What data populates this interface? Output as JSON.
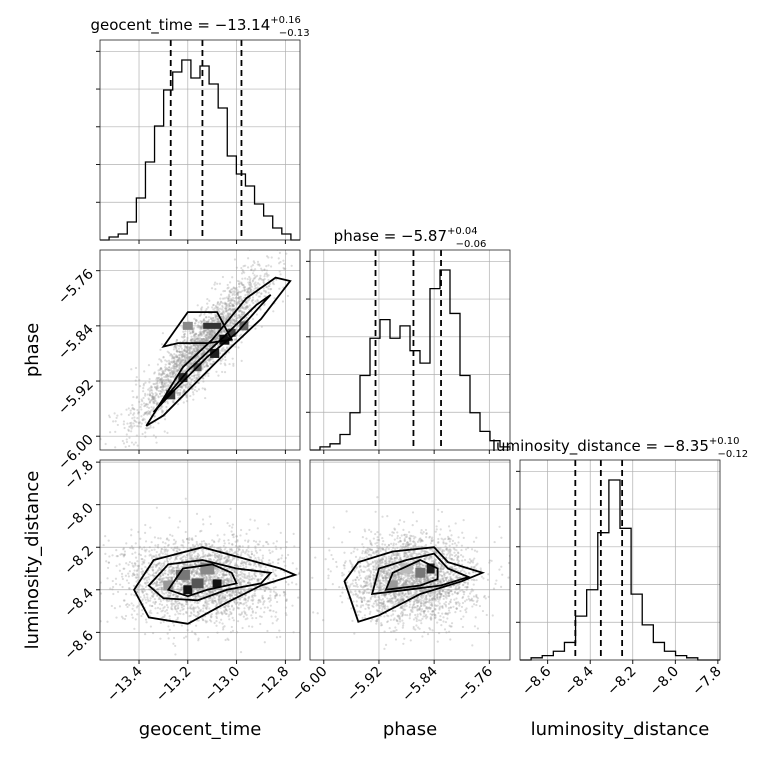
{
  "chart_data": {
    "type": "corner",
    "parameters": [
      "geocent_time",
      "phase",
      "luminosity_distance"
    ],
    "titles": [
      {
        "param": "geocent_time",
        "median": "−13.14",
        "plus": "+0.16",
        "minus": "−0.13"
      },
      {
        "param": "phase",
        "median": "−5.87",
        "plus": "+0.04",
        "minus": "−0.06"
      },
      {
        "param": "luminosity_distance",
        "median": "−8.35",
        "plus": "+0.10",
        "minus": "−0.12"
      }
    ],
    "ranges": {
      "geocent_time": [
        -13.56,
        -12.74
      ],
      "phase": [
        -6.02,
        -5.73
      ],
      "luminosity_distance": [
        -8.73,
        -7.79
      ]
    },
    "ticks": {
      "geocent_time": [
        -13.4,
        -13.2,
        -13.0,
        -12.8
      ],
      "phase": [
        -6.0,
        -5.92,
        -5.84,
        -5.76
      ],
      "luminosity_distance": [
        -8.6,
        -8.4,
        -8.2,
        -8.0,
        -7.8
      ]
    },
    "tick_labels": {
      "geocent_time": [
        "−13.4",
        "−13.2",
        "−13.0",
        "−12.8"
      ],
      "phase": [
        "−6.00",
        "−5.92",
        "−5.84",
        "−5.76"
      ],
      "luminosity_distance": [
        "−8.6",
        "−8.4",
        "−8.2",
        "−8.0",
        "−7.8"
      ]
    },
    "quantiles": {
      "geocent_time": [
        -13.27,
        -13.14,
        -12.98
      ],
      "phase": [
        -5.925,
        -5.87,
        -5.83
      ],
      "luminosity_distance": [
        -8.47,
        -8.35,
        -8.25
      ]
    },
    "histograms": {
      "geocent_time": {
        "edges": [
          -13.56,
          -12.74
        ],
        "counts": [
          0,
          1,
          2,
          6,
          14,
          26,
          38,
          50,
          56,
          60,
          54,
          58,
          52,
          44,
          28,
          22,
          18,
          12,
          8,
          4,
          2,
          0
        ]
      },
      "phase": {
        "edges": [
          -6.02,
          -5.73
        ],
        "counts": [
          0,
          1,
          2,
          5,
          12,
          24,
          36,
          42,
          36,
          40,
          32,
          28,
          52,
          58,
          44,
          24,
          12,
          6,
          3,
          1
        ]
      },
      "luminosity_distance": {
        "edges": [
          -8.73,
          -7.79
        ],
        "counts": [
          0,
          1,
          2,
          4,
          8,
          20,
          32,
          58,
          82,
          60,
          30,
          16,
          8,
          4,
          2,
          1,
          0,
          0
        ]
      }
    },
    "grid": true
  }
}
